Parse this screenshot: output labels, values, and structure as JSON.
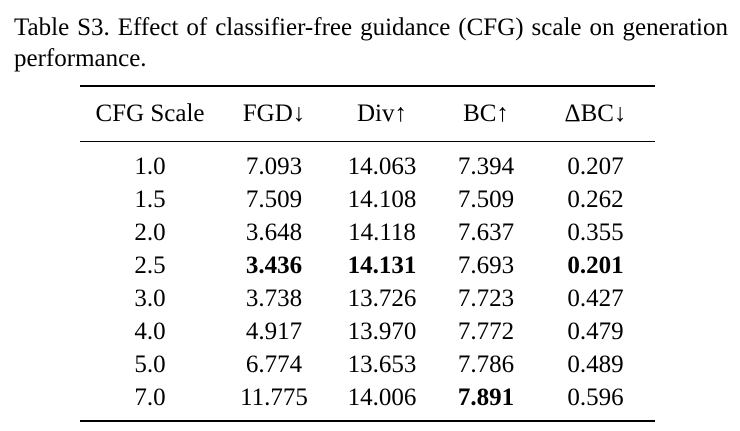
{
  "caption": "Table S3. Effect of classifier-free guidance (CFG) scale on generation performance.",
  "table": {
    "headers": [
      "CFG Scale",
      "FGD↓",
      "Div↑",
      "BC↑",
      "ΔBC↓"
    ],
    "rows": [
      [
        "1.0",
        "7.093",
        "14.063",
        "7.394",
        "0.207"
      ],
      [
        "1.5",
        "7.509",
        "14.108",
        "7.509",
        "0.262"
      ],
      [
        "2.0",
        "3.648",
        "14.118",
        "7.637",
        "0.355"
      ],
      [
        "2.5",
        "3.436",
        "14.131",
        "7.693",
        "0.201"
      ],
      [
        "3.0",
        "3.738",
        "13.726",
        "7.723",
        "0.427"
      ],
      [
        "4.0",
        "4.917",
        "13.970",
        "7.772",
        "0.479"
      ],
      [
        "5.0",
        "6.774",
        "13.653",
        "7.786",
        "0.489"
      ],
      [
        "7.0",
        "11.775",
        "14.006",
        "7.891",
        "0.596"
      ]
    ],
    "bold_cells": [
      [
        3,
        1
      ],
      [
        3,
        2
      ],
      [
        3,
        4
      ],
      [
        7,
        3
      ]
    ]
  }
}
